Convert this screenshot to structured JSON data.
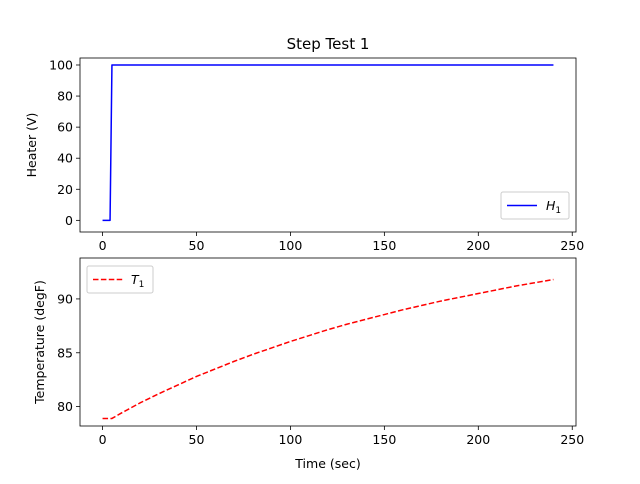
{
  "figure": {
    "title": "Step Test 1"
  },
  "chart_data": [
    {
      "type": "line",
      "title": "Step Test 1",
      "xlabel": "",
      "ylabel": "Heater (V)",
      "xlim": [
        -12,
        252
      ],
      "ylim": [
        -7.5,
        104.5
      ],
      "xticks": [
        0,
        50,
        100,
        150,
        200,
        250
      ],
      "yticks": [
        0,
        20,
        40,
        60,
        80,
        100
      ],
      "xtick_labels": [
        "0",
        "50",
        "100",
        "150",
        "200",
        "250"
      ],
      "ytick_labels": [
        "0",
        "20",
        "40",
        "60",
        "80",
        "100"
      ],
      "grid": false,
      "legend": {
        "position": "lower-right"
      },
      "series": [
        {
          "name": "H1",
          "label_main": "H",
          "label_sub": "1",
          "color": "#0000ff",
          "style": "solid",
          "x": [
            0,
            4,
            5,
            240
          ],
          "y": [
            0,
            0,
            100,
            100
          ]
        }
      ]
    },
    {
      "type": "line",
      "title": "",
      "xlabel": "Time (sec)",
      "ylabel": "Temperature (degF)",
      "xlim": [
        -12,
        252
      ],
      "ylim": [
        78.2,
        93.8
      ],
      "xticks": [
        0,
        50,
        100,
        150,
        200,
        250
      ],
      "yticks": [
        80,
        85,
        90
      ],
      "xtick_labels": [
        "0",
        "50",
        "100",
        "150",
        "200",
        "250"
      ],
      "ytick_labels": [
        "80",
        "85",
        "90"
      ],
      "grid": false,
      "legend": {
        "position": "upper-left"
      },
      "series": [
        {
          "name": "T1",
          "label_main": "T",
          "label_sub": "1",
          "color": "#ff0000",
          "style": "dashed",
          "x": [
            0,
            5,
            10,
            20,
            30,
            40,
            50,
            60,
            70,
            80,
            90,
            100,
            110,
            120,
            130,
            140,
            150,
            160,
            170,
            180,
            190,
            200,
            210,
            220,
            230,
            240
          ],
          "y": [
            78.9,
            78.9,
            79.4,
            80.35,
            81.2,
            82.0,
            82.8,
            83.5,
            84.2,
            84.85,
            85.45,
            86.05,
            86.6,
            87.15,
            87.65,
            88.1,
            88.55,
            89.0,
            89.4,
            89.8,
            90.15,
            90.5,
            90.85,
            91.2,
            91.5,
            91.8
          ]
        }
      ]
    }
  ]
}
